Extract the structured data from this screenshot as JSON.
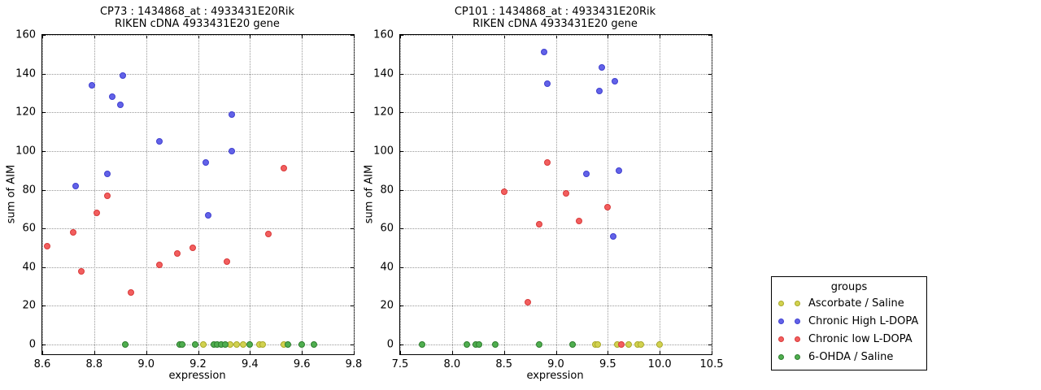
{
  "chart_data": [
    {
      "type": "scatter",
      "title": "CP73 : 1434868_at : 4933431E20Rik",
      "subtitle": "RIKEN cDNA 4933431E20 gene",
      "xlabel": "expression",
      "ylabel": "sum of AIM",
      "xlim": [
        8.6,
        9.8
      ],
      "ylim": [
        -5,
        160
      ],
      "xticks": [
        "8.6",
        "8.8",
        "9.0",
        "9.2",
        "9.4",
        "9.6",
        "9.8"
      ],
      "yticks": [
        "0",
        "20",
        "40",
        "60",
        "80",
        "100",
        "120",
        "140",
        "160"
      ],
      "grid": true,
      "legend_position": "outside-right",
      "series": [
        {
          "name": "Ascorbate / Saline",
          "points": [
            [
              9.22,
              0
            ],
            [
              9.325,
              0
            ],
            [
              9.35,
              0
            ],
            [
              9.375,
              0
            ],
            [
              9.435,
              0
            ],
            [
              9.45,
              0
            ],
            [
              9.53,
              0
            ]
          ]
        },
        {
          "name": "Chronic High L-DOPA",
          "points": [
            [
              8.73,
              82
            ],
            [
              8.79,
              134
            ],
            [
              8.85,
              88
            ],
            [
              8.87,
              128
            ],
            [
              8.9,
              124
            ],
            [
              8.91,
              139
            ],
            [
              9.05,
              105
            ],
            [
              9.23,
              94
            ],
            [
              9.24,
              67
            ],
            [
              9.33,
              119
            ],
            [
              9.33,
              100
            ]
          ]
        },
        {
          "name": "Chronic low L-DOPA",
          "points": [
            [
              8.62,
              51
            ],
            [
              8.72,
              58
            ],
            [
              8.75,
              38
            ],
            [
              8.81,
              68
            ],
            [
              8.85,
              77
            ],
            [
              8.94,
              27
            ],
            [
              9.05,
              41
            ],
            [
              9.12,
              47
            ],
            [
              9.18,
              50
            ],
            [
              9.31,
              43
            ],
            [
              9.47,
              57
            ],
            [
              9.53,
              91
            ]
          ]
        },
        {
          "name": "6-OHDA / Saline",
          "points": [
            [
              8.92,
              0
            ],
            [
              9.13,
              0
            ],
            [
              9.14,
              0
            ],
            [
              9.19,
              0
            ],
            [
              9.26,
              0
            ],
            [
              9.275,
              0
            ],
            [
              9.29,
              0
            ],
            [
              9.305,
              0
            ],
            [
              9.4,
              0
            ],
            [
              9.545,
              0
            ],
            [
              9.6,
              0
            ],
            [
              9.645,
              0
            ]
          ]
        }
      ]
    },
    {
      "type": "scatter",
      "title": "CP101 : 1434868_at : 4933431E20Rik",
      "subtitle": "RIKEN cDNA 4933431E20 gene",
      "xlabel": "expression",
      "ylabel": "sum of AIM",
      "xlim": [
        7.5,
        10.5
      ],
      "ylim": [
        -5,
        160
      ],
      "xticks": [
        "7.5",
        "8.0",
        "8.5",
        "9.0",
        "9.5",
        "10.0",
        "10.5"
      ],
      "yticks": [
        "0",
        "20",
        "40",
        "60",
        "80",
        "100",
        "120",
        "140",
        "160"
      ],
      "grid": true,
      "legend_position": "outside-right",
      "series": [
        {
          "name": "Ascorbate / Saline",
          "points": [
            [
              9.38,
              0
            ],
            [
              9.4,
              0
            ],
            [
              9.59,
              0
            ],
            [
              9.7,
              0
            ],
            [
              9.79,
              0
            ],
            [
              9.82,
              0
            ],
            [
              10.0,
              0
            ]
          ]
        },
        {
          "name": "Chronic High L-DOPA",
          "points": [
            [
              8.89,
              151
            ],
            [
              8.92,
              135
            ],
            [
              9.29,
              88
            ],
            [
              9.42,
              131
            ],
            [
              9.44,
              143
            ],
            [
              9.55,
              56
            ],
            [
              9.57,
              136
            ],
            [
              9.61,
              90
            ]
          ]
        },
        {
          "name": "Chronic low L-DOPA",
          "points": [
            [
              8.5,
              79
            ],
            [
              8.73,
              22
            ],
            [
              8.84,
              62
            ],
            [
              8.92,
              94
            ],
            [
              9.1,
              78
            ],
            [
              9.22,
              64
            ],
            [
              9.5,
              71
            ],
            [
              9.63,
              0
            ]
          ]
        },
        {
          "name": "6-OHDA / Saline",
          "points": [
            [
              7.71,
              0
            ],
            [
              8.14,
              0
            ],
            [
              8.23,
              0
            ],
            [
              8.26,
              0
            ],
            [
              8.42,
              0
            ],
            [
              8.84,
              0
            ],
            [
              9.16,
              0
            ]
          ]
        }
      ]
    }
  ],
  "legend": {
    "title": "groups",
    "items": [
      {
        "label": "Ascorbate / Saline",
        "color": "#d2d24f",
        "edge": "#a9a92c"
      },
      {
        "label": "Chronic High L-DOPA",
        "color": "#6262e8",
        "edge": "#4040d0"
      },
      {
        "label": "Chronic low L-DOPA",
        "color": "#f25e5e",
        "edge": "#d93a3a"
      },
      {
        "label": "6-OHDA / Saline",
        "color": "#4fae4f",
        "edge": "#2e7d2e"
      }
    ]
  }
}
